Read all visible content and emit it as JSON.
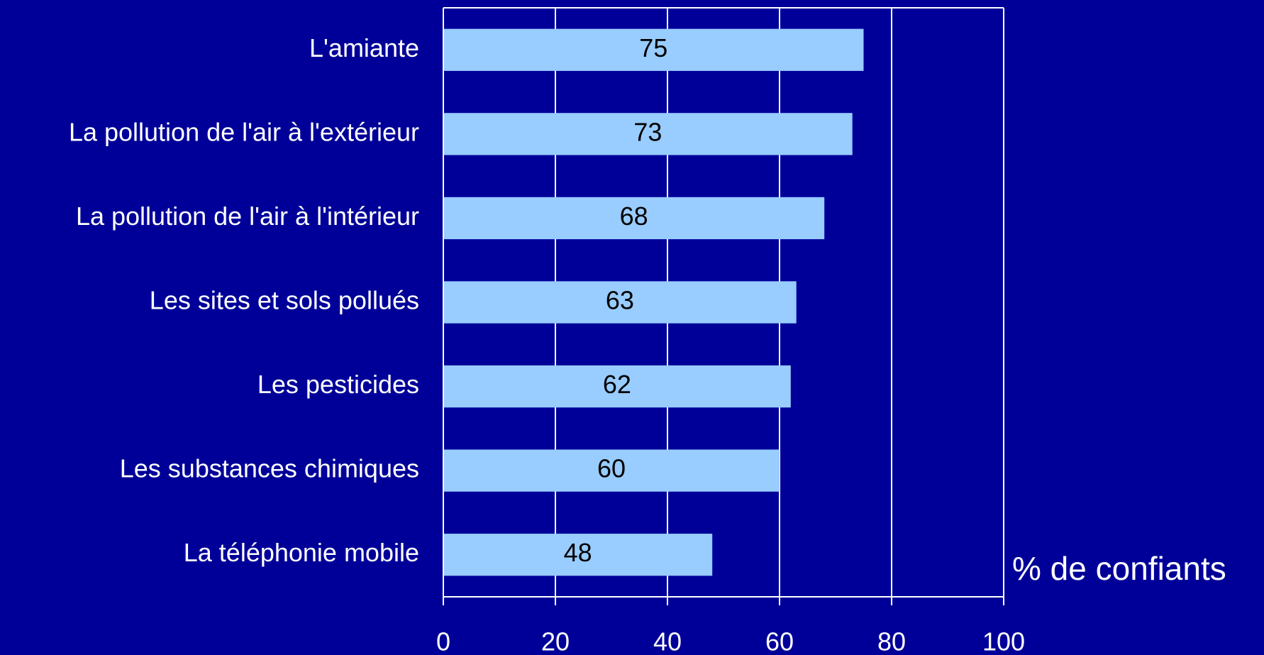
{
  "chart_data": {
    "type": "hbar",
    "categories": [
      "L'amiante",
      "La pollution de l'air à l'extérieur",
      "La pollution de l'air à l'intérieur",
      "Les sites et sols pollués",
      "Les pesticides",
      "Les substances chimiques",
      "La téléphonie mobile"
    ],
    "values": [
      75,
      73,
      68,
      63,
      62,
      60,
      48
    ],
    "color": "#99ccff",
    "xlim": [
      0,
      100
    ],
    "xticks": [
      0,
      20,
      40,
      60,
      80,
      100
    ],
    "grid": true,
    "x_axis_label": "% de confiants"
  }
}
